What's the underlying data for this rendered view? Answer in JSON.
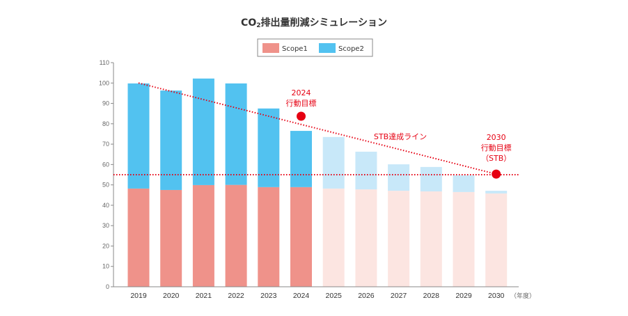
{
  "chart_data": {
    "type": "bar",
    "stacked": true,
    "title": "CO₂排出量削減シミュレーション",
    "title_parts": {
      "pre": "CO",
      "sub": "2",
      "post": "排出量削減シミュレーション"
    },
    "categories": [
      "2019",
      "2020",
      "2021",
      "2022",
      "2023",
      "2024",
      "2025",
      "2026",
      "2027",
      "2028",
      "2029",
      "2030"
    ],
    "x_unit_label": "（年度）",
    "series": [
      {
        "name": "Scope1",
        "color": "#ef928a",
        "projected_color": "#fce5e1",
        "values": [
          48.2,
          47.5,
          49.9,
          50.0,
          48.9,
          48.9,
          48.2,
          47.8,
          47.1,
          46.8,
          46.5,
          45.8
        ]
      },
      {
        "name": "Scope2",
        "color": "#52c2f0",
        "projected_color": "#c8e8f9",
        "values": [
          51.6,
          48.8,
          52.3,
          49.8,
          38.6,
          27.6,
          25.3,
          18.5,
          13.0,
          12.0,
          8.2,
          1.3
        ]
      }
    ],
    "projected_from": "2025",
    "ylim": [
      0,
      110
    ],
    "yticks": [
      0,
      10,
      20,
      30,
      40,
      50,
      60,
      70,
      80,
      90,
      100,
      110
    ],
    "grid": false,
    "legend": "top-center",
    "reference_lines": [
      {
        "label": "STB達成ライン",
        "from": {
          "x": "2019",
          "y": 100
        },
        "to": {
          "x": "2030",
          "y": 55.3
        },
        "style": "dotted",
        "color": "#e60012"
      },
      {
        "label": "",
        "y": 55,
        "style": "dotted",
        "color": "#e60012"
      }
    ],
    "targets": [
      {
        "x": "2024",
        "y": 83.7,
        "label_lines": [
          "2024",
          "行動目標"
        ]
      },
      {
        "x": "2030",
        "y": 55.3,
        "label_lines": [
          "2030",
          "行動目標",
          "（STB）"
        ]
      }
    ],
    "accent_color": "#e60012"
  }
}
